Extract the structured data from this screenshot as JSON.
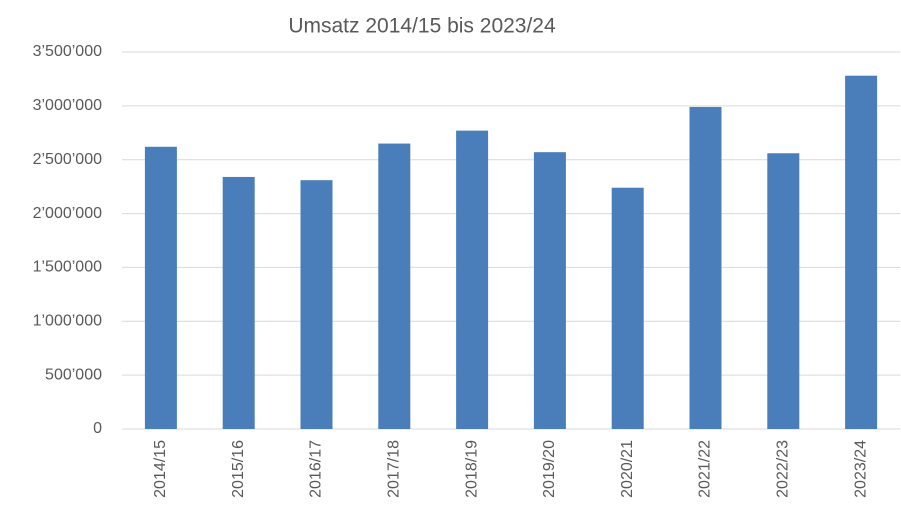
{
  "chart_data": {
    "type": "bar",
    "title": "Umsatz 2014/15 bis 2023/24",
    "categories": [
      "2014/15",
      "2015/16",
      "2016/17",
      "2017/18",
      "2018/19",
      "2019/20",
      "2020/21",
      "2021/22",
      "2022/23",
      "2023/24"
    ],
    "values": [
      2620000,
      2340000,
      2310000,
      2650000,
      2770000,
      2570000,
      2240000,
      2990000,
      2560000,
      3280000
    ],
    "color": "#4a7ebb",
    "ylim": [
      0,
      3500000
    ],
    "yticks": [
      0,
      {
        "value": 500000,
        "label": "500’000"
      },
      {
        "value": 1000000,
        "label": "1’000’000"
      },
      {
        "value": 1500000,
        "label": "1’500’000"
      },
      {
        "value": 2000000,
        "label": "2’000’000"
      },
      {
        "value": 2500000,
        "label": "2’500’000"
      },
      {
        "value": 3000000,
        "label": "3’000’000"
      },
      {
        "value": 3500000,
        "label": "3’500’000"
      }
    ],
    "grid": true
  }
}
